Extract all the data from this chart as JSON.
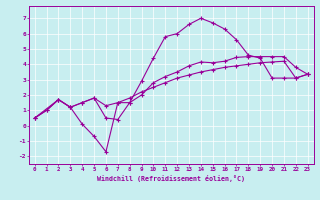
{
  "xlabel": "Windchill (Refroidissement éolien,°C)",
  "background_color": "#c8eef0",
  "line_color": "#990099",
  "xlim": [
    -0.5,
    23.5
  ],
  "ylim": [
    -2.5,
    7.8
  ],
  "yticks": [
    -2,
    -1,
    0,
    1,
    2,
    3,
    4,
    5,
    6,
    7
  ],
  "xticks": [
    0,
    1,
    2,
    3,
    4,
    5,
    6,
    7,
    8,
    9,
    10,
    11,
    12,
    13,
    14,
    15,
    16,
    17,
    18,
    19,
    20,
    21,
    22,
    23
  ],
  "line1_x": [
    0,
    1,
    2,
    3,
    4,
    5,
    6,
    7,
    8,
    9,
    10,
    11,
    12,
    13,
    14,
    15,
    16,
    17,
    18,
    19,
    20,
    21,
    22,
    23
  ],
  "line1_y": [
    0.5,
    1.0,
    1.7,
    1.2,
    1.5,
    1.8,
    1.3,
    1.5,
    1.8,
    2.2,
    2.5,
    2.8,
    3.1,
    3.3,
    3.5,
    3.65,
    3.8,
    3.9,
    4.0,
    4.1,
    4.15,
    4.2,
    3.1,
    3.35
  ],
  "line2_x": [
    0,
    2,
    3,
    4,
    5,
    6,
    7,
    8,
    9,
    10,
    11,
    12,
    13,
    14,
    15,
    16,
    17,
    18,
    19,
    20,
    21,
    22,
    23
  ],
  "line2_y": [
    0.5,
    1.7,
    1.2,
    0.1,
    -0.7,
    -1.7,
    1.5,
    1.5,
    2.9,
    4.4,
    5.8,
    6.0,
    6.6,
    7.0,
    6.7,
    6.3,
    5.6,
    4.6,
    4.4,
    3.1,
    3.1,
    3.1,
    3.35
  ],
  "line3_x": [
    0,
    1,
    2,
    3,
    4,
    5,
    6,
    7,
    8,
    9,
    10,
    11,
    12,
    13,
    14,
    15,
    16,
    17,
    18,
    19,
    20,
    21,
    22,
    23
  ],
  "line3_y": [
    0.5,
    1.0,
    1.7,
    1.2,
    1.5,
    1.8,
    0.5,
    0.4,
    1.5,
    2.0,
    2.8,
    3.2,
    3.5,
    3.9,
    4.15,
    4.1,
    4.2,
    4.45,
    4.5,
    4.5,
    4.5,
    4.5,
    3.8,
    3.35
  ]
}
